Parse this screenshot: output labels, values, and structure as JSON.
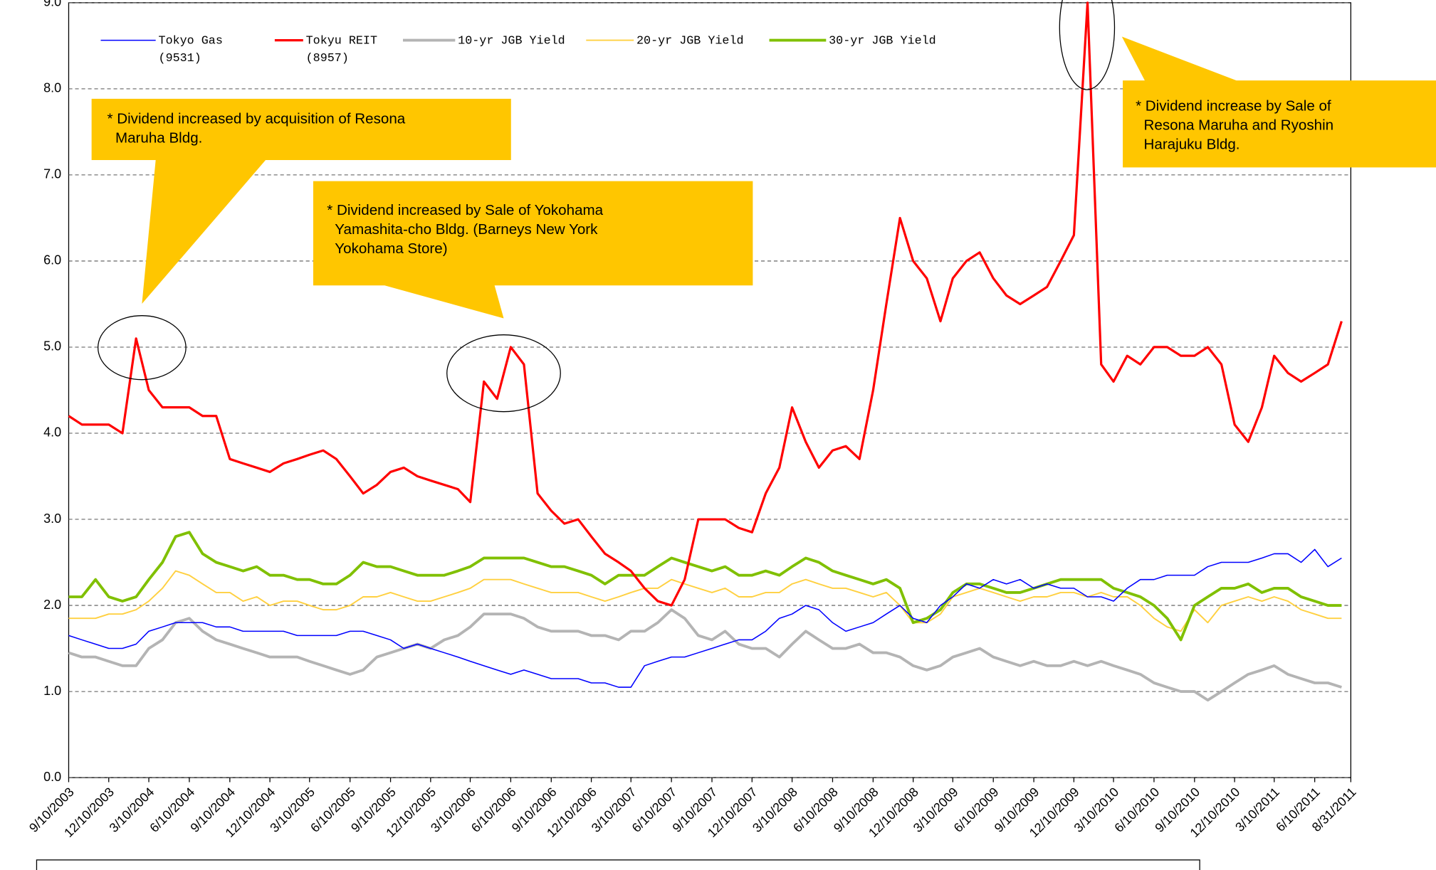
{
  "chart_data": {
    "type": "line",
    "x": [
      "2003-09-10",
      "2003-10-10",
      "2003-11-10",
      "2003-12-10",
      "2004-01-10",
      "2004-02-10",
      "2004-03-10",
      "2004-04-10",
      "2004-05-10",
      "2004-06-10",
      "2004-07-10",
      "2004-08-10",
      "2004-09-10",
      "2004-10-10",
      "2004-11-10",
      "2004-12-10",
      "2005-01-10",
      "2005-02-10",
      "2005-03-10",
      "2005-04-10",
      "2005-05-10",
      "2005-06-10",
      "2005-07-10",
      "2005-08-10",
      "2005-09-10",
      "2005-10-10",
      "2005-11-10",
      "2005-12-10",
      "2006-01-10",
      "2006-02-10",
      "2006-03-10",
      "2006-04-10",
      "2006-05-10",
      "2006-06-10",
      "2006-07-10",
      "2006-08-10",
      "2006-09-10",
      "2006-10-10",
      "2006-11-10",
      "2006-12-10",
      "2007-01-10",
      "2007-02-10",
      "2007-03-10",
      "2007-04-10",
      "2007-05-10",
      "2007-06-10",
      "2007-07-10",
      "2007-08-10",
      "2007-09-10",
      "2007-10-10",
      "2007-11-10",
      "2007-12-10",
      "2008-01-10",
      "2008-02-10",
      "2008-03-10",
      "2008-04-10",
      "2008-05-10",
      "2008-06-10",
      "2008-07-10",
      "2008-08-10",
      "2008-09-10",
      "2008-10-10",
      "2008-11-10",
      "2008-12-10",
      "2009-01-10",
      "2009-02-10",
      "2009-03-10",
      "2009-04-10",
      "2009-05-10",
      "2009-06-10",
      "2009-07-10",
      "2009-08-10",
      "2009-09-10",
      "2009-10-10",
      "2009-11-10",
      "2009-12-10",
      "2010-01-10",
      "2010-02-10",
      "2010-03-10",
      "2010-04-10",
      "2010-05-10",
      "2010-06-10",
      "2010-07-10",
      "2010-08-10",
      "2010-09-10",
      "2010-10-10",
      "2010-11-10",
      "2010-12-10",
      "2011-01-10",
      "2011-02-10",
      "2011-03-10",
      "2011-04-10",
      "2011-05-10",
      "2011-06-10",
      "2011-07-10",
      "2011-08-10"
    ],
    "series": [
      {
        "name": "Tokyo Gas\n(9531)",
        "color": "#0000ff",
        "width": 1.2,
        "values": [
          1.65,
          1.6,
          1.55,
          1.5,
          1.5,
          1.55,
          1.7,
          1.75,
          1.8,
          1.8,
          1.8,
          1.75,
          1.75,
          1.7,
          1.7,
          1.7,
          1.7,
          1.65,
          1.65,
          1.65,
          1.65,
          1.7,
          1.7,
          1.65,
          1.6,
          1.5,
          1.55,
          1.5,
          1.45,
          1.4,
          1.35,
          1.3,
          1.25,
          1.2,
          1.25,
          1.2,
          1.15,
          1.15,
          1.15,
          1.1,
          1.1,
          1.05,
          1.05,
          1.3,
          1.35,
          1.4,
          1.4,
          1.45,
          1.5,
          1.55,
          1.6,
          1.6,
          1.7,
          1.85,
          1.9,
          2.0,
          1.95,
          1.8,
          1.7,
          1.75,
          1.8,
          1.9,
          2.0,
          1.85,
          1.8,
          2.0,
          2.1,
          2.25,
          2.2,
          2.3,
          2.25,
          2.3,
          2.2,
          2.25,
          2.2,
          2.2,
          2.1,
          2.1,
          2.05,
          2.2,
          2.3,
          2.3,
          2.35,
          2.35,
          2.35,
          2.45,
          2.5,
          2.5,
          2.5,
          2.55,
          2.6,
          2.6,
          2.5,
          2.65,
          2.45,
          2.55
        ]
      },
      {
        "name": "Tokyu REIT\n(8957)",
        "color": "#ff0000",
        "width": 2.5,
        "values": [
          4.2,
          4.1,
          4.1,
          4.1,
          4.0,
          5.1,
          4.5,
          4.3,
          4.3,
          4.3,
          4.2,
          4.2,
          3.7,
          3.65,
          3.6,
          3.55,
          3.65,
          3.7,
          3.75,
          3.8,
          3.7,
          3.5,
          3.3,
          3.4,
          3.55,
          3.6,
          3.5,
          3.45,
          3.4,
          3.35,
          3.2,
          4.6,
          4.4,
          5.0,
          4.8,
          3.3,
          3.1,
          2.95,
          3.0,
          2.8,
          2.6,
          2.5,
          2.4,
          2.2,
          2.05,
          2.0,
          2.3,
          3.0,
          3.0,
          3.0,
          2.9,
          2.85,
          3.3,
          3.6,
          4.3,
          3.9,
          3.6,
          3.8,
          3.85,
          3.7,
          4.5,
          5.5,
          6.5,
          6.0,
          5.8,
          5.3,
          5.8,
          6.0,
          6.1,
          5.8,
          5.6,
          5.5,
          5.6,
          5.7,
          6.0,
          6.3,
          9.0,
          4.8,
          4.6,
          4.9,
          4.8,
          5.0,
          5.0,
          4.9,
          4.9,
          5.0,
          4.8,
          4.1,
          3.9,
          4.3,
          4.9,
          4.7,
          4.6,
          4.7,
          4.8,
          5.3
        ]
      },
      {
        "name": "10-yr JGB Yield",
        "color": "#b4b4b4",
        "width": 3,
        "values": [
          1.45,
          1.4,
          1.4,
          1.35,
          1.3,
          1.3,
          1.5,
          1.6,
          1.8,
          1.85,
          1.7,
          1.6,
          1.55,
          1.5,
          1.45,
          1.4,
          1.4,
          1.4,
          1.35,
          1.3,
          1.25,
          1.2,
          1.25,
          1.4,
          1.45,
          1.5,
          1.55,
          1.5,
          1.6,
          1.65,
          1.75,
          1.9,
          1.9,
          1.9,
          1.85,
          1.75,
          1.7,
          1.7,
          1.7,
          1.65,
          1.65,
          1.6,
          1.7,
          1.7,
          1.8,
          1.95,
          1.85,
          1.65,
          1.6,
          1.7,
          1.55,
          1.5,
          1.5,
          1.4,
          1.55,
          1.7,
          1.6,
          1.5,
          1.5,
          1.55,
          1.45,
          1.45,
          1.4,
          1.3,
          1.25,
          1.3,
          1.4,
          1.45,
          1.5,
          1.4,
          1.35,
          1.3,
          1.35,
          1.3,
          1.3,
          1.35,
          1.3,
          1.35,
          1.3,
          1.25,
          1.2,
          1.1,
          1.05,
          1.0,
          1.0,
          0.9,
          1.0,
          1.1,
          1.2,
          1.25,
          1.3,
          1.2,
          1.15,
          1.1,
          1.1,
          1.05
        ]
      },
      {
        "name": "20-yr JGB Yield",
        "color": "#ffd040",
        "width": 1.5,
        "values": [
          1.85,
          1.85,
          1.85,
          1.9,
          1.9,
          1.95,
          2.05,
          2.2,
          2.4,
          2.35,
          2.25,
          2.15,
          2.15,
          2.05,
          2.1,
          2.0,
          2.05,
          2.05,
          2.0,
          1.95,
          1.95,
          2.0,
          2.1,
          2.1,
          2.15,
          2.1,
          2.05,
          2.05,
          2.1,
          2.15,
          2.2,
          2.3,
          2.3,
          2.3,
          2.25,
          2.2,
          2.15,
          2.15,
          2.15,
          2.1,
          2.05,
          2.1,
          2.15,
          2.2,
          2.2,
          2.3,
          2.25,
          2.2,
          2.15,
          2.2,
          2.1,
          2.1,
          2.15,
          2.15,
          2.25,
          2.3,
          2.25,
          2.2,
          2.2,
          2.15,
          2.1,
          2.15,
          2.0,
          1.8,
          1.8,
          1.9,
          2.1,
          2.15,
          2.2,
          2.15,
          2.1,
          2.05,
          2.1,
          2.1,
          2.15,
          2.15,
          2.1,
          2.15,
          2.1,
          2.1,
          2.0,
          1.85,
          1.75,
          1.7,
          1.95,
          1.8,
          2.0,
          2.05,
          2.1,
          2.05,
          2.1,
          2.05,
          1.95,
          1.9,
          1.85,
          1.85
        ]
      },
      {
        "name": "30-yr JGB Yield",
        "color": "#80c000",
        "width": 3,
        "values": [
          2.1,
          2.1,
          2.3,
          2.1,
          2.05,
          2.1,
          2.3,
          2.5,
          2.8,
          2.85,
          2.6,
          2.5,
          2.45,
          2.4,
          2.45,
          2.35,
          2.35,
          2.3,
          2.3,
          2.25,
          2.25,
          2.35,
          2.5,
          2.45,
          2.45,
          2.4,
          2.35,
          2.35,
          2.35,
          2.4,
          2.45,
          2.55,
          2.55,
          2.55,
          2.55,
          2.5,
          2.45,
          2.45,
          2.4,
          2.35,
          2.25,
          2.35,
          2.35,
          2.35,
          2.45,
          2.55,
          2.5,
          2.45,
          2.4,
          2.45,
          2.35,
          2.35,
          2.4,
          2.35,
          2.45,
          2.55,
          2.5,
          2.4,
          2.35,
          2.3,
          2.25,
          2.3,
          2.2,
          1.8,
          1.85,
          1.95,
          2.15,
          2.25,
          2.25,
          2.2,
          2.15,
          2.15,
          2.2,
          2.25,
          2.3,
          2.3,
          2.3,
          2.3,
          2.2,
          2.15,
          2.1,
          2.0,
          1.85,
          1.6,
          2.0,
          2.1,
          2.2,
          2.2,
          2.25,
          2.15,
          2.2,
          2.2,
          2.1,
          2.05,
          2.0,
          2.0
        ]
      }
    ],
    "xlim": [
      "2003-09-10",
      "2011-08-31"
    ],
    "xticks": [
      {
        "value": "2003-09-10",
        "label": "9/10/2003"
      },
      {
        "value": "2003-12-10",
        "label": "12/10/2003"
      },
      {
        "value": "2004-03-10",
        "label": "3/10/2004"
      },
      {
        "value": "2004-06-10",
        "label": "6/10/2004"
      },
      {
        "value": "2004-09-10",
        "label": "9/10/2004"
      },
      {
        "value": "2004-12-10",
        "label": "12/10/2004"
      },
      {
        "value": "2005-03-10",
        "label": "3/10/2005"
      },
      {
        "value": "2005-06-10",
        "label": "6/10/2005"
      },
      {
        "value": "2005-09-10",
        "label": "9/10/2005"
      },
      {
        "value": "2005-12-10",
        "label": "12/10/2005"
      },
      {
        "value": "2006-03-10",
        "label": "3/10/2006"
      },
      {
        "value": "2006-06-10",
        "label": "6/10/2006"
      },
      {
        "value": "2006-09-10",
        "label": "9/10/2006"
      },
      {
        "value": "2006-12-10",
        "label": "12/10/2006"
      },
      {
        "value": "2007-03-10",
        "label": "3/10/2007"
      },
      {
        "value": "2007-06-10",
        "label": "6/10/2007"
      },
      {
        "value": "2007-09-10",
        "label": "9/10/2007"
      },
      {
        "value": "2007-12-10",
        "label": "12/10/2007"
      },
      {
        "value": "2008-03-10",
        "label": "3/10/2008"
      },
      {
        "value": "2008-06-10",
        "label": "6/10/2008"
      },
      {
        "value": "2008-09-10",
        "label": "9/10/2008"
      },
      {
        "value": "2008-12-10",
        "label": "12/10/2008"
      },
      {
        "value": "2009-03-10",
        "label": "3/10/2009"
      },
      {
        "value": "2009-06-10",
        "label": "6/10/2009"
      },
      {
        "value": "2009-09-10",
        "label": "9/10/2009"
      },
      {
        "value": "2009-12-10",
        "label": "12/10/2009"
      },
      {
        "value": "2010-03-10",
        "label": "3/10/2010"
      },
      {
        "value": "2010-06-10",
        "label": "6/10/2010"
      },
      {
        "value": "2010-09-10",
        "label": "9/10/2010"
      },
      {
        "value": "2010-12-10",
        "label": "12/10/2010"
      },
      {
        "value": "2011-03-10",
        "label": "3/10/2011"
      },
      {
        "value": "2011-06-10",
        "label": "6/10/2011"
      },
      {
        "value": "2011-08-31",
        "label": "8/31/2011"
      }
    ],
    "ylim": [
      0,
      9
    ],
    "yticks": [
      {
        "value": 0,
        "label": "0.0"
      },
      {
        "value": 1,
        "label": "1.0"
      },
      {
        "value": 2,
        "label": "2.0"
      },
      {
        "value": 3,
        "label": "3.0"
      },
      {
        "value": 4,
        "label": "4.0"
      },
      {
        "value": 5,
        "label": "5.0"
      },
      {
        "value": 6,
        "label": "6.0"
      },
      {
        "value": 7,
        "label": "7.0"
      },
      {
        "value": 8,
        "label": "8.0"
      },
      {
        "value": 9,
        "label": "9.0"
      }
    ],
    "grid": true,
    "annotations": [
      "* Dividend increased by acquisition of Resona\n  Maruha Bldg.",
      "* Dividend increased by Sale of Yokohama\n  Yamashita-cho Bldg. (Barneys New York\n  Yokohama Store)",
      "* Dividend increase by Sale of\n  Resona Maruha and Ryoshin\n  Harajuku Bldg."
    ]
  }
}
